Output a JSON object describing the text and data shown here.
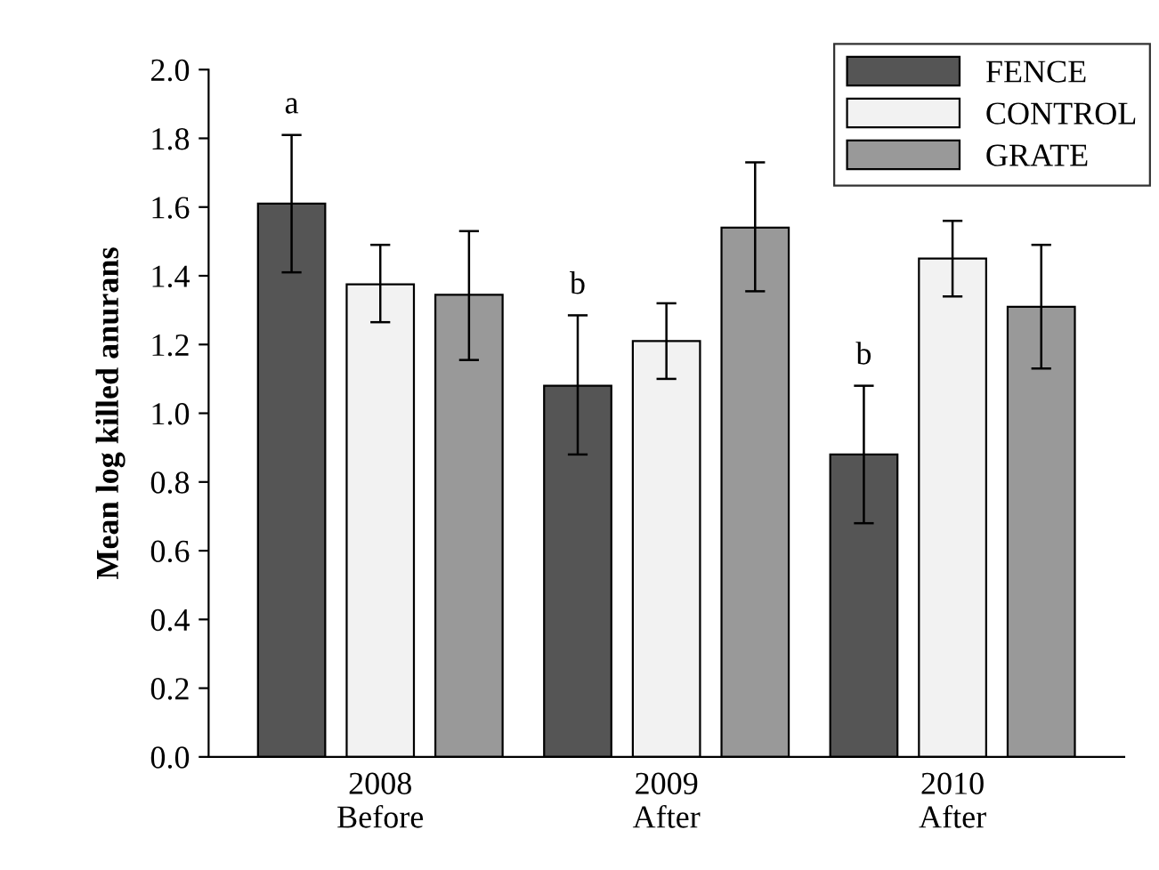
{
  "chart_data": {
    "type": "bar",
    "ylabel": "Mean log killed anurans",
    "categories": [
      "2008\nBefore",
      "2009\nAfter",
      "2010\nAfter"
    ],
    "series": [
      {
        "name": "FENCE",
        "color": "#555555",
        "values": [
          1.61,
          1.08,
          0.88
        ],
        "errors": [
          [
            1.41,
            1.81
          ],
          [
            0.88,
            1.285
          ],
          [
            0.68,
            1.08
          ]
        ]
      },
      {
        "name": "CONTROL",
        "color": "#f2f2f2",
        "values": [
          1.375,
          1.21,
          1.45
        ],
        "errors": [
          [
            1.265,
            1.49
          ],
          [
            1.1,
            1.32
          ],
          [
            1.34,
            1.56
          ]
        ]
      },
      {
        "name": "GRATE",
        "color": "#999999",
        "values": [
          1.345,
          1.54,
          1.31
        ],
        "errors": [
          [
            1.155,
            1.53
          ],
          [
            1.355,
            1.73
          ],
          [
            1.13,
            1.49
          ]
        ]
      }
    ],
    "ylim": [
      0,
      2.0
    ],
    "yticks": [
      {
        "value": 0,
        "label": "0.0"
      },
      {
        "value": 0.2,
        "label": "0.2"
      },
      {
        "value": 0.4,
        "label": "0.4"
      },
      {
        "value": 0.6,
        "label": "0.6"
      },
      {
        "value": 0.8,
        "label": "0.8"
      },
      {
        "value": 1.0,
        "label": "1.0"
      },
      {
        "value": 1.2,
        "label": "1.2"
      },
      {
        "value": 1.4,
        "label": "1.4"
      },
      {
        "value": 1.6,
        "label": "1.6"
      },
      {
        "value": 1.8,
        "label": "1.8"
      },
      {
        "value": 2.0,
        "label": "2.0"
      }
    ],
    "annotations": [
      "a",
      "b",
      "b"
    ],
    "grid": false,
    "legend": "top right"
  }
}
